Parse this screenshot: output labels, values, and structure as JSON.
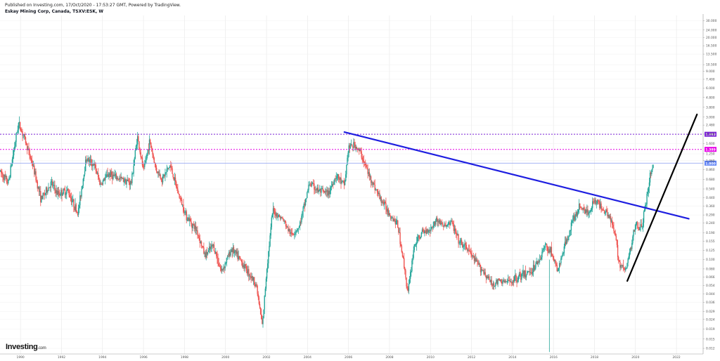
{
  "header": {
    "published": "Published on Investing.com, 17/Oct/2020 - 17:53:27 GMT, Powered by TradingView.",
    "symbol": "Eskay Mining Corp, Canada, TSXV:ESK, W"
  },
  "logo": {
    "main": "Investing",
    "suffix": ".com"
  },
  "colors": {
    "up": "#26a69a",
    "down": "#ef5350",
    "trend_blue": "#1e1ee0",
    "trend_black": "#000000",
    "magenta": "#e600e6",
    "purple": "#7a1fd8",
    "blue_level": "#9aaaf2",
    "blue_badge": "#5b7ff5",
    "grid": "#e6e6e6"
  },
  "chart_data": {
    "type": "candlestick",
    "symbol": "TSXV:ESK",
    "timeframe": "W",
    "y_scale": "log",
    "x_ticks": [
      "1990",
      "1992",
      "1994",
      "1996",
      "1998",
      "2000",
      "2002",
      "2004",
      "2006",
      "2008",
      "2010",
      "2012",
      "2014",
      "2016",
      "2018",
      "2020",
      "2022"
    ],
    "y_ticks": [
      "0.012",
      "0.015",
      "0.019",
      "0.024",
      "0.029",
      "0.036",
      "0.044",
      "0.054",
      "0.066",
      "0.080",
      "0.100",
      "0.125",
      "0.155",
      "0.190",
      "0.240",
      "0.290",
      "0.360",
      "0.440",
      "0.540",
      "0.680",
      "0.860",
      "1.060",
      "1.250",
      "1.600",
      "2.000",
      "2.480",
      "3.000",
      "3.800",
      "4.800",
      "6.000",
      "7.400",
      "9.000",
      "10.500",
      "13.500",
      "16.500",
      "20.000",
      "24.000",
      "30.000"
    ],
    "x_range": [
      1989.0,
      2023.3
    ],
    "price_path": [
      [
        1989.0,
        0.82
      ],
      [
        1989.4,
        0.62
      ],
      [
        1989.9,
        2.6
      ],
      [
        1990.2,
        1.8
      ],
      [
        1990.6,
        0.95
      ],
      [
        1991.0,
        0.42
      ],
      [
        1991.5,
        0.62
      ],
      [
        1991.8,
        0.48
      ],
      [
        1992.3,
        0.52
      ],
      [
        1992.8,
        0.3
      ],
      [
        1993.2,
        1.12
      ],
      [
        1993.6,
        0.95
      ],
      [
        1993.9,
        0.6
      ],
      [
        1994.3,
        0.78
      ],
      [
        1994.7,
        0.7
      ],
      [
        1995.0,
        0.68
      ],
      [
        1995.4,
        0.62
      ],
      [
        1995.7,
        1.9
      ],
      [
        1996.0,
        0.82
      ],
      [
        1996.3,
        1.7
      ],
      [
        1996.6,
        0.88
      ],
      [
        1996.9,
        0.68
      ],
      [
        1997.3,
        0.95
      ],
      [
        1997.7,
        0.48
      ],
      [
        1998.1,
        0.28
      ],
      [
        1998.6,
        0.2
      ],
      [
        1999.0,
        0.11
      ],
      [
        1999.4,
        0.14
      ],
      [
        1999.8,
        0.075
      ],
      [
        2000.3,
        0.13
      ],
      [
        2000.7,
        0.1
      ],
      [
        2001.1,
        0.075
      ],
      [
        2001.5,
        0.055
      ],
      [
        2001.8,
        0.02
      ],
      [
        2002.0,
        0.075
      ],
      [
        2002.3,
        0.32
      ],
      [
        2002.8,
        0.26
      ],
      [
        2003.2,
        0.18
      ],
      [
        2003.6,
        0.22
      ],
      [
        2004.1,
        0.62
      ],
      [
        2004.5,
        0.52
      ],
      [
        2005.0,
        0.48
      ],
      [
        2005.4,
        0.75
      ],
      [
        2005.8,
        0.58
      ],
      [
        2006.0,
        1.45
      ],
      [
        2006.3,
        1.55
      ],
      [
        2006.6,
        1.25
      ],
      [
        2007.0,
        0.75
      ],
      [
        2007.5,
        0.45
      ],
      [
        2008.0,
        0.3
      ],
      [
        2008.4,
        0.23
      ],
      [
        2008.7,
        0.09
      ],
      [
        2008.9,
        0.045
      ],
      [
        2009.2,
        0.14
      ],
      [
        2009.6,
        0.19
      ],
      [
        2010.0,
        0.21
      ],
      [
        2010.3,
        0.26
      ],
      [
        2010.7,
        0.22
      ],
      [
        2011.0,
        0.25
      ],
      [
        2011.4,
        0.15
      ],
      [
        2011.8,
        0.13
      ],
      [
        2012.2,
        0.095
      ],
      [
        2012.6,
        0.075
      ],
      [
        2013.0,
        0.055
      ],
      [
        2013.4,
        0.06
      ],
      [
        2013.8,
        0.058
      ],
      [
        2014.2,
        0.065
      ],
      [
        2014.6,
        0.07
      ],
      [
        2015.0,
        0.08
      ],
      [
        2015.3,
        0.1
      ],
      [
        2015.6,
        0.14
      ],
      [
        2015.9,
        0.12
      ],
      [
        2016.2,
        0.075
      ],
      [
        2016.6,
        0.15
      ],
      [
        2016.9,
        0.24
      ],
      [
        2017.3,
        0.36
      ],
      [
        2017.7,
        0.3
      ],
      [
        2018.0,
        0.42
      ],
      [
        2018.4,
        0.34
      ],
      [
        2018.7,
        0.3
      ],
      [
        2019.0,
        0.18
      ],
      [
        2019.2,
        0.095
      ],
      [
        2019.5,
        0.075
      ],
      [
        2019.8,
        0.14
      ],
      [
        2020.0,
        0.24
      ],
      [
        2020.3,
        0.21
      ],
      [
        2020.5,
        0.38
      ],
      [
        2020.7,
        0.72
      ],
      [
        2020.9,
        1.02
      ]
    ],
    "levels": [
      {
        "price": 1.993,
        "label": "1.993",
        "style": "dotted",
        "color_key": "purple"
      },
      {
        "price": 1.389,
        "label": "1.389",
        "style": "dotted",
        "color_key": "magenta"
      },
      {
        "price": 1.0,
        "label": "1.000",
        "style": "solid",
        "color_key": "blue_level"
      }
    ],
    "trendlines": [
      {
        "color_key": "trend_blue",
        "from": [
          2005.8,
          2.1
        ],
        "to": [
          2022.6,
          0.265
        ]
      },
      {
        "color_key": "trend_black",
        "from": [
          2019.6,
          0.06
        ],
        "to": [
          2023.0,
          3.2
        ]
      }
    ],
    "spikes": [
      {
        "x": 2015.8,
        "low": 0.011,
        "high": 0.1
      }
    ]
  }
}
